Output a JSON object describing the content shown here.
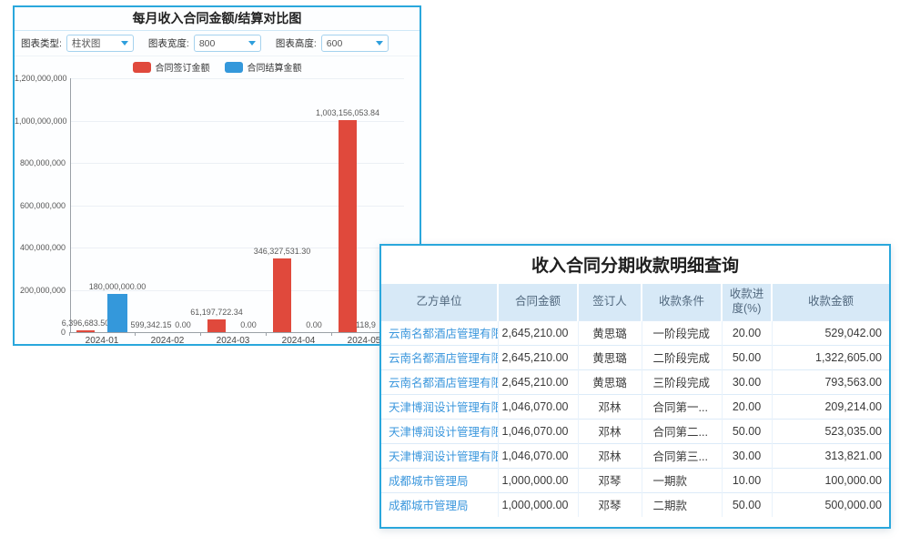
{
  "colors": {
    "panel_border": "#2aa7dc",
    "bar_red": "#e0493c",
    "bar_blue": "#3498db",
    "link": "#3b97dd",
    "header_bg": "#d7e9f7",
    "header_text": "#51687e"
  },
  "chart_panel": {
    "title": "每月收入合同金额/结算对比图",
    "controls": [
      {
        "label": "图表类型:",
        "value": "柱状图"
      },
      {
        "label": "图表宽度:",
        "value": "800"
      },
      {
        "label": "图表高度:",
        "value": "600"
      }
    ]
  },
  "chart_data": {
    "type": "bar",
    "title": "每月收入合同金额/结算对比图",
    "categories": [
      "2024-01",
      "2024-02",
      "2024-03",
      "2024-04",
      "2024-05"
    ],
    "series": [
      {
        "name": "合同签订金额",
        "color": "#e0493c",
        "values": [
          6396683.5,
          599342.15,
          61197722.34,
          346327531.3,
          1003156053.84
        ],
        "labels": [
          "6,396,683.50",
          "599,342.15",
          "61,197,722.34",
          "346,327,531.30",
          "1,003,156,053.84"
        ]
      },
      {
        "name": "合同结算金额",
        "color": "#3498db",
        "values": [
          180000000,
          0,
          0,
          0,
          null
        ],
        "labels": [
          "180,000,000.00",
          "0.00",
          "0.00",
          "0.00",
          "118,9"
        ]
      }
    ],
    "xlabel": "",
    "ylabel": "",
    "ylim": [
      0,
      1200000000
    ],
    "ytick_labels": [
      "0",
      "200,000,000",
      "400,000,000",
      "600,000,000",
      "800,000,000",
      "1,000,000,000",
      "1,200,000,000"
    ],
    "grid": true,
    "legend_position": "top"
  },
  "table_panel": {
    "title": "收入合同分期收款明细查询",
    "columns": [
      "乙方单位",
      "合同金额",
      "签订人",
      "收款条件",
      "收款进度(%)",
      "收款金额"
    ],
    "rows": [
      [
        "云南名都酒店管理有限公司",
        "2,645,210.00",
        "黄思璐",
        "一阶段完成",
        "20.00",
        "529,042.00"
      ],
      [
        "云南名都酒店管理有限公司",
        "2,645,210.00",
        "黄思璐",
        "二阶段完成",
        "50.00",
        "1,322,605.00"
      ],
      [
        "云南名都酒店管理有限公司",
        "2,645,210.00",
        "黄思璐",
        "三阶段完成",
        "30.00",
        "793,563.00"
      ],
      [
        "天津博润设计管理有限公司",
        "1,046,070.00",
        "邓林",
        "合同第一...",
        "20.00",
        "209,214.00"
      ],
      [
        "天津博润设计管理有限公司",
        "1,046,070.00",
        "邓林",
        "合同第二...",
        "50.00",
        "523,035.00"
      ],
      [
        "天津博润设计管理有限公司",
        "1,046,070.00",
        "邓林",
        "合同第三...",
        "30.00",
        "313,821.00"
      ],
      [
        "成都城市管理局",
        "1,000,000.00",
        "邓琴",
        "一期款",
        "10.00",
        "100,000.00"
      ],
      [
        "成都城市管理局",
        "1,000,000.00",
        "邓琴",
        "二期款",
        "50.00",
        "500,000.00"
      ]
    ]
  }
}
